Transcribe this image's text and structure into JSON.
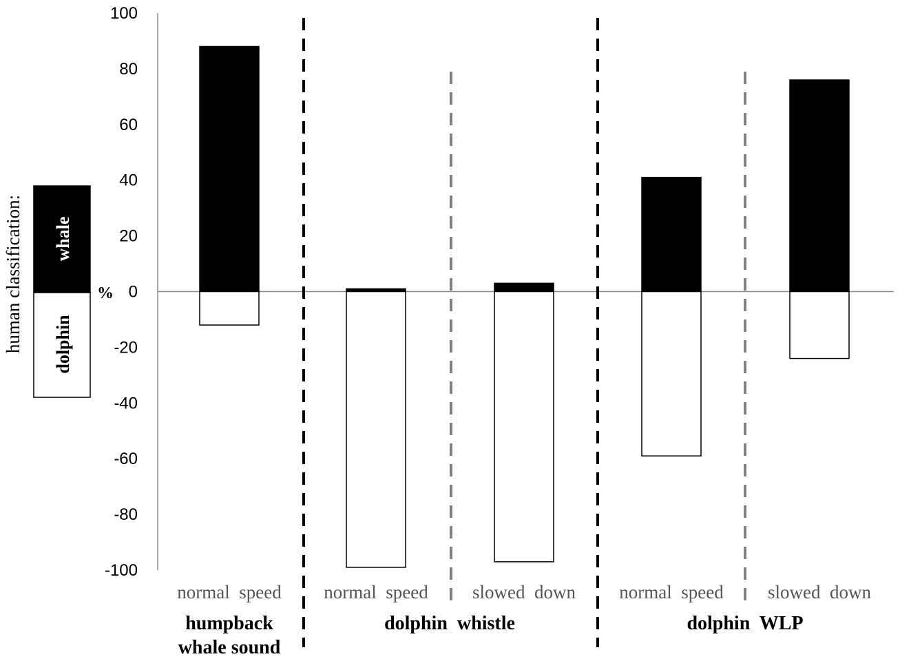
{
  "chart_data": {
    "type": "bar",
    "ylabel": "human classification:",
    "y_unit": "%",
    "ylim": [
      -100,
      100
    ],
    "yticks": [
      "100",
      "80",
      "60",
      "40",
      "20",
      "0",
      "-20",
      "-40",
      "-60",
      "-80",
      "-100"
    ],
    "legend": {
      "positive": "whale",
      "negative": "dolphin"
    },
    "groups": [
      {
        "label": "humpback whale sound",
        "label_lines": [
          "humpback",
          "whale sound"
        ]
      },
      {
        "label": "dolphin whistle",
        "label_lines": [
          "dolphin  whistle"
        ]
      },
      {
        "label": "dolphin WLP",
        "label_lines": [
          "dolphin  WLP"
        ]
      }
    ],
    "categories": [
      {
        "label": "normal  speed",
        "group": 0
      },
      {
        "label": "normal  speed",
        "group": 1
      },
      {
        "label": "slowed  down",
        "group": 1
      },
      {
        "label": "normal  speed",
        "group": 2
      },
      {
        "label": "slowed  down",
        "group": 2
      }
    ],
    "series": [
      {
        "name": "whale",
        "color": "#000000",
        "values": [
          88,
          1,
          3,
          41,
          76
        ]
      },
      {
        "name": "dolphin",
        "color": "#ffffff",
        "values": [
          -12,
          -99,
          -97,
          -59,
          -24
        ]
      }
    ]
  }
}
